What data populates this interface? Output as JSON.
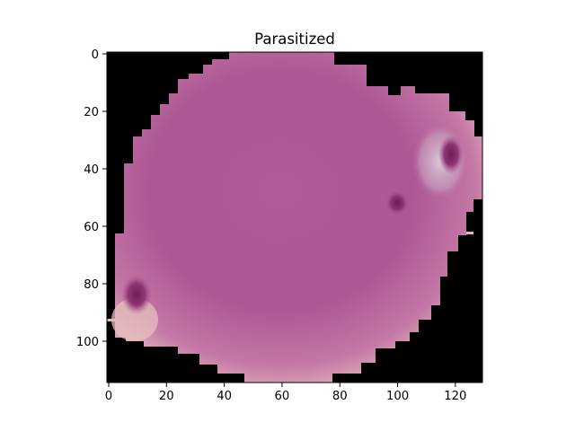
{
  "figure": {
    "title": "Parasitized",
    "image_extent": {
      "x_min": 0,
      "x_max": 130,
      "y_min": 0,
      "y_max": 115
    },
    "x_ticks": [
      0,
      20,
      40,
      60,
      80,
      100,
      120
    ],
    "y_ticks": [
      0,
      20,
      40,
      60,
      80,
      100
    ],
    "background_color": "#000000",
    "cell": {
      "description_color_main": "#b05a97",
      "edge_color": "#e7b9b4",
      "stain_spots": [
        {
          "x": 10,
          "y": 84
        },
        {
          "x": 100,
          "y": 52
        },
        {
          "x": 118,
          "y": 35
        }
      ]
    }
  }
}
